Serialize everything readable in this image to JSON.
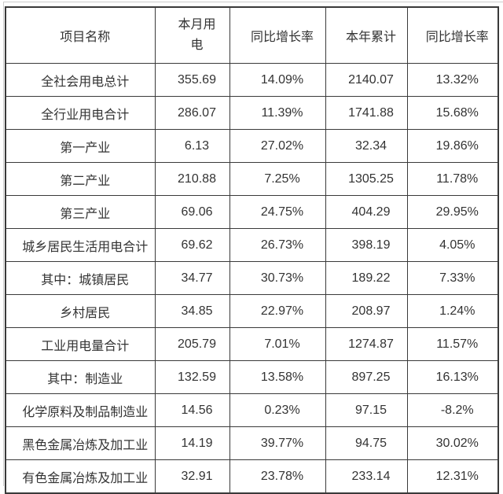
{
  "page": {
    "text_color": "#333333",
    "table_border_color": "#3a3a3a",
    "frame_line_color": "#cccccc",
    "background_color": "#ffffff"
  },
  "table": {
    "columns": [
      {
        "label": "项目名称"
      },
      {
        "label_lines": [
          "本月用",
          "电"
        ]
      },
      {
        "label": "同比增长率"
      },
      {
        "label": "本年累计"
      },
      {
        "label": "同比增长率"
      }
    ],
    "rows": [
      {
        "name": "全社会用电总计",
        "month": "355.69",
        "mom": "14.09%",
        "ytd": "2140.07",
        "yoy": "13.32%"
      },
      {
        "name": "全行业用电合计",
        "month": "286.07",
        "mom": "11.39%",
        "ytd": "1741.88",
        "yoy": "15.68%"
      },
      {
        "name": "第一产业",
        "month": "6.13",
        "mom": "27.02%",
        "ytd": "32.34",
        "yoy": "19.86%"
      },
      {
        "name": "第二产业",
        "month": "210.88",
        "mom": "7.25%",
        "ytd": "1305.25",
        "yoy": "11.78%"
      },
      {
        "name": "第三产业",
        "month": "69.06",
        "mom": "24.75%",
        "ytd": "404.29",
        "yoy": "29.95%"
      },
      {
        "name": "城乡居民生活用电合计",
        "month": "69.62",
        "mom": "26.73%",
        "ytd": "398.19",
        "yoy": "4.05%"
      },
      {
        "name": "其中：城镇居民",
        "month": "34.77",
        "mom": "30.73%",
        "ytd": "189.22",
        "yoy": "7.33%"
      },
      {
        "name": "乡村居民",
        "month": "34.85",
        "mom": "22.97%",
        "ytd": "208.97",
        "yoy": "1.24%"
      },
      {
        "name": "工业用电量合计",
        "month": "205.79",
        "mom": "7.01%",
        "ytd": "1274.87",
        "yoy": "11.57%"
      },
      {
        "name": "其中：制造业",
        "month": "132.59",
        "mom": "13.58%",
        "ytd": "897.25",
        "yoy": "16.13%"
      },
      {
        "name": "化学原料及制品制造业",
        "month": "14.56",
        "mom": "0.23%",
        "ytd": "97.15",
        "yoy": "-8.2%"
      },
      {
        "name": "黑色金属冶炼及加工业",
        "month": "14.19",
        "mom": "39.77%",
        "ytd": "94.75",
        "yoy": "30.02%"
      },
      {
        "name": "有色金属冶炼及加工业",
        "month": "32.91",
        "mom": "23.78%",
        "ytd": "233.14",
        "yoy": "12.31%"
      }
    ]
  }
}
